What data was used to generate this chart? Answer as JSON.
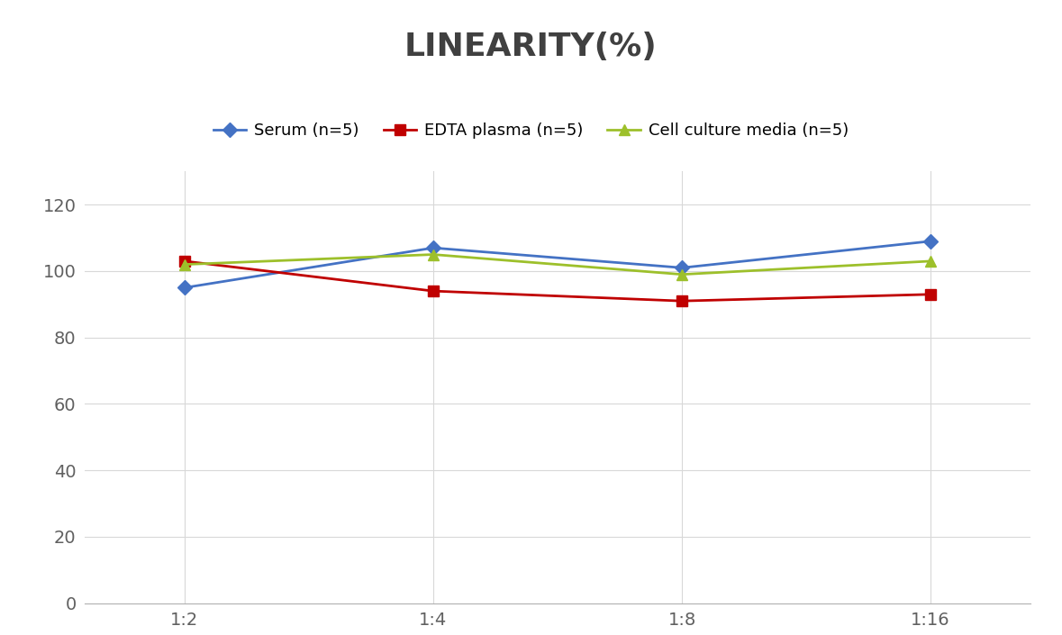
{
  "title": "LINEARITY(%)",
  "x_labels": [
    "1:2",
    "1:4",
    "1:8",
    "1:16"
  ],
  "x_values": [
    0,
    1,
    2,
    3
  ],
  "series": [
    {
      "label": "Serum (n=5)",
      "values": [
        95,
        107,
        101,
        109
      ],
      "color": "#4472C4",
      "marker": "D",
      "linewidth": 2.0,
      "markersize": 8
    },
    {
      "label": "EDTA plasma (n=5)",
      "values": [
        103,
        94,
        91,
        93
      ],
      "color": "#C00000",
      "marker": "s",
      "linewidth": 2.0,
      "markersize": 8
    },
    {
      "label": "Cell culture media (n=5)",
      "values": [
        102,
        105,
        99,
        103
      ],
      "color": "#9DC02B",
      "marker": "^",
      "linewidth": 2.0,
      "markersize": 8
    }
  ],
  "ylim": [
    0,
    130
  ],
  "yticks": [
    0,
    20,
    40,
    60,
    80,
    100,
    120
  ],
  "grid_color": "#D8D8D8",
  "background_color": "#FFFFFF",
  "title_fontsize": 26,
  "title_fontweight": "bold",
  "title_color": "#404040",
  "legend_fontsize": 13,
  "tick_fontsize": 14,
  "tick_color": "#606060"
}
